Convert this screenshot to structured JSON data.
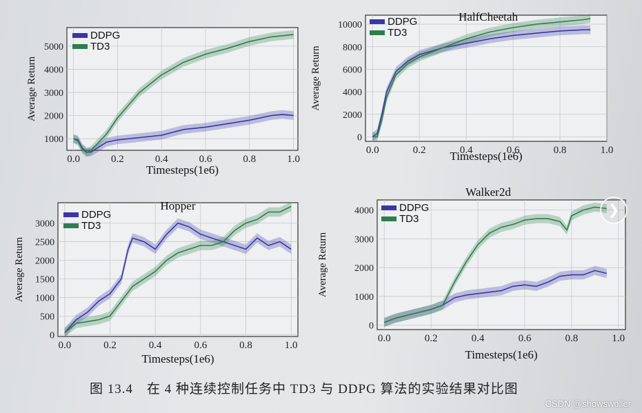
{
  "figure": {
    "caption": "图 13.4　在 4 种连续控制任务中 TD3 与 DDPG 算法的实验结果对比图",
    "watermark": "CSDN @showswoller"
  },
  "nav": {
    "icon": "chevron-right-icon"
  },
  "colors": {
    "ddpg": "#3b35a6",
    "td3": "#2f7d4c"
  },
  "chart_data": [
    {
      "type": "line",
      "title": "",
      "xlabel": "Timesteps(1e6)",
      "ylabel": "Average Return",
      "xlim": [
        -0.03,
        1.02
      ],
      "ylim": [
        500,
        5800
      ],
      "xticks": [
        "0.0",
        "0.2",
        "0.4",
        "0.6",
        "0.8",
        "1.0"
      ],
      "yticks": [
        "1000",
        "2000",
        "3000",
        "4000",
        "5000"
      ],
      "legend": "top-left",
      "grid": true,
      "series": [
        {
          "name": "DDPG",
          "x": [
            0,
            0.02,
            0.04,
            0.06,
            0.08,
            0.1,
            0.15,
            0.2,
            0.3,
            0.4,
            0.5,
            0.6,
            0.7,
            0.8,
            0.9,
            0.95,
            1.0
          ],
          "values": [
            1000,
            950,
            600,
            420,
            430,
            550,
            850,
            950,
            1050,
            1150,
            1400,
            1500,
            1650,
            1800,
            2000,
            2050,
            2000
          ]
        },
        {
          "name": "TD3",
          "x": [
            0,
            0.02,
            0.04,
            0.06,
            0.08,
            0.1,
            0.15,
            0.2,
            0.3,
            0.4,
            0.5,
            0.6,
            0.7,
            0.8,
            0.9,
            0.95,
            1.0
          ],
          "values": [
            1000,
            900,
            550,
            400,
            500,
            700,
            1200,
            1900,
            3000,
            3750,
            4300,
            4650,
            4900,
            5200,
            5400,
            5450,
            5500
          ]
        }
      ]
    },
    {
      "type": "line",
      "title": "HalfCheetah",
      "xlabel": "Timesteps(1e6)",
      "ylabel": "Average Return",
      "xlim": [
        -0.03,
        1.0
      ],
      "ylim": [
        -400,
        10800
      ],
      "xticks": [
        "0.0",
        "0.2",
        "0.4",
        "0.6",
        "0.8",
        "1.0"
      ],
      "yticks": [
        "0",
        "2000",
        "4000",
        "6000",
        "8000",
        "10000"
      ],
      "legend": "top-left",
      "grid": true,
      "series": [
        {
          "name": "DDPG",
          "x": [
            0,
            0.02,
            0.04,
            0.06,
            0.1,
            0.15,
            0.2,
            0.3,
            0.4,
            0.5,
            0.6,
            0.7,
            0.8,
            0.9,
            0.93
          ],
          "values": [
            0,
            300,
            2000,
            4000,
            5800,
            6700,
            7300,
            7900,
            8300,
            8700,
            9000,
            9200,
            9400,
            9500,
            9500
          ]
        },
        {
          "name": "TD3",
          "x": [
            0,
            0.02,
            0.04,
            0.06,
            0.1,
            0.15,
            0.2,
            0.3,
            0.4,
            0.5,
            0.6,
            0.7,
            0.8,
            0.9,
            0.93
          ],
          "values": [
            0,
            0,
            1500,
            3500,
            5500,
            6500,
            7100,
            7900,
            8700,
            9300,
            9700,
            10000,
            10200,
            10400,
            10500
          ]
        }
      ]
    },
    {
      "type": "line",
      "title": "Hopper",
      "xlabel": "Timesteps(1e6)",
      "ylabel": "Average Return",
      "xlim": [
        -0.03,
        1.03
      ],
      "ylim": [
        -50,
        3550
      ],
      "xticks": [
        "0.0",
        "0.2",
        "0.4",
        "0.6",
        "0.8",
        "1.0"
      ],
      "yticks": [
        "0",
        "500",
        "1000",
        "1500",
        "2000",
        "2500",
        "3000"
      ],
      "legend": "top-left",
      "grid": true,
      "series": [
        {
          "name": "DDPG",
          "x": [
            0,
            0.05,
            0.1,
            0.15,
            0.2,
            0.25,
            0.28,
            0.3,
            0.35,
            0.4,
            0.45,
            0.5,
            0.55,
            0.6,
            0.65,
            0.7,
            0.75,
            0.8,
            0.85,
            0.9,
            0.95,
            1.0
          ],
          "values": [
            50,
            400,
            600,
            900,
            1100,
            1500,
            2300,
            2600,
            2500,
            2300,
            2700,
            3000,
            2900,
            2700,
            2600,
            2500,
            2400,
            2300,
            2600,
            2400,
            2500,
            2300
          ]
        },
        {
          "name": "TD3",
          "x": [
            0,
            0.05,
            0.1,
            0.15,
            0.2,
            0.25,
            0.3,
            0.35,
            0.4,
            0.45,
            0.5,
            0.55,
            0.6,
            0.65,
            0.7,
            0.75,
            0.8,
            0.85,
            0.9,
            0.95,
            1.0
          ],
          "values": [
            50,
            300,
            350,
            400,
            500,
            900,
            1300,
            1500,
            1700,
            2000,
            2200,
            2300,
            2400,
            2400,
            2500,
            2800,
            3000,
            3100,
            3300,
            3300,
            3450
          ]
        }
      ]
    },
    {
      "type": "line",
      "title": "Walker2d",
      "xlabel": "Timesteps(1e6)",
      "ylabel": "Average Return",
      "xlim": [
        -0.03,
        1.03
      ],
      "ylim": [
        -150,
        4350
      ],
      "xticks": [
        "0.0",
        "0.2",
        "0.4",
        "0.6",
        "0.8",
        "1.0"
      ],
      "yticks": [
        "0",
        "1000",
        "2000",
        "3000",
        "4000"
      ],
      "legend": "top-left",
      "grid": true,
      "series": [
        {
          "name": "DDPG",
          "x": [
            0,
            0.05,
            0.1,
            0.15,
            0.2,
            0.25,
            0.3,
            0.35,
            0.4,
            0.45,
            0.5,
            0.55,
            0.6,
            0.65,
            0.7,
            0.75,
            0.8,
            0.85,
            0.9,
            0.95
          ],
          "values": [
            100,
            250,
            350,
            450,
            550,
            700,
            950,
            1050,
            1100,
            1150,
            1200,
            1350,
            1400,
            1350,
            1500,
            1700,
            1750,
            1750,
            1900,
            1800
          ]
        },
        {
          "name": "TD3",
          "x": [
            0,
            0.05,
            0.1,
            0.15,
            0.2,
            0.25,
            0.3,
            0.35,
            0.4,
            0.45,
            0.5,
            0.55,
            0.6,
            0.65,
            0.7,
            0.75,
            0.78,
            0.8,
            0.85,
            0.9,
            0.95
          ],
          "values": [
            100,
            250,
            350,
            450,
            550,
            700,
            1500,
            2200,
            2800,
            3200,
            3400,
            3500,
            3650,
            3700,
            3700,
            3600,
            3300,
            3800,
            4000,
            4100,
            4050
          ]
        }
      ]
    }
  ]
}
